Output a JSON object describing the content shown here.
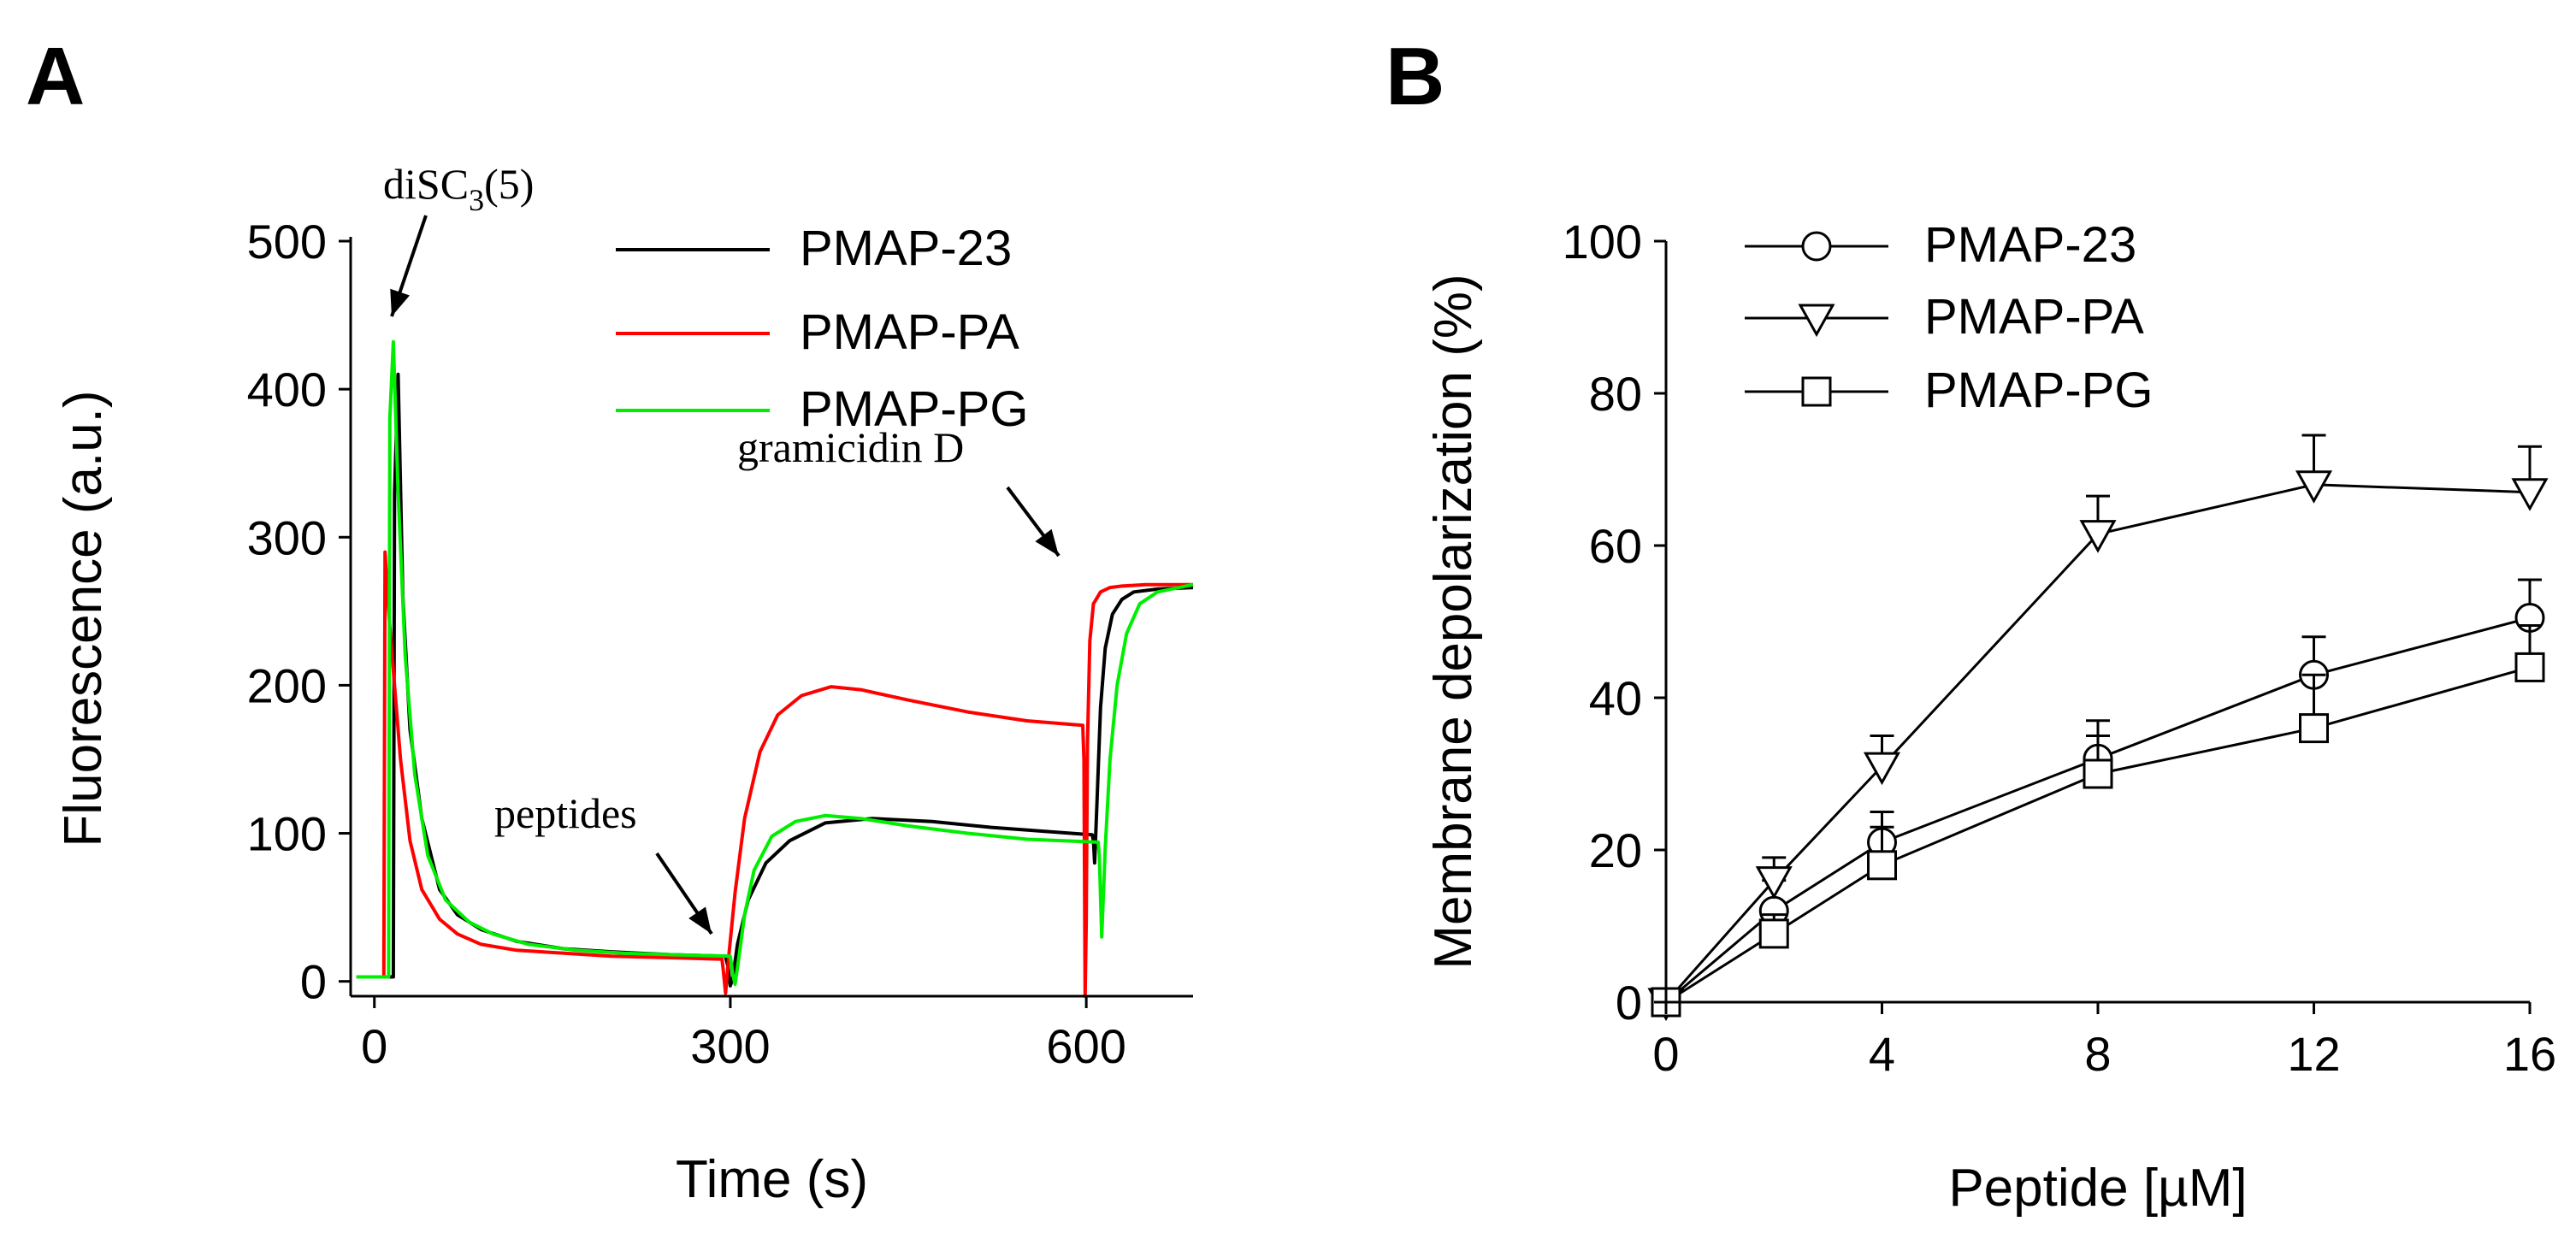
{
  "figure": {
    "panels": [
      {
        "label": "A"
      },
      {
        "label": "B"
      }
    ]
  },
  "chart_data": [
    {
      "panel": "A",
      "type": "line",
      "title": "",
      "xlabel": "Time (s)",
      "ylabel": "Fluorescence (a.u.)",
      "xlim": [
        -20,
        690
      ],
      "ylim": [
        -10,
        500
      ],
      "xticks": [
        0,
        300,
        600
      ],
      "yticks": [
        0,
        100,
        200,
        300,
        400,
        500
      ],
      "legend_position": "top-right",
      "annotations": [
        {
          "text": "diSC",
          "sub": "3",
          "suffix": "(5)",
          "x": 12,
          "y": 440
        },
        {
          "text": "peptides",
          "x": 295,
          "y": 20
        },
        {
          "text": "gramicidin D",
          "x": 598,
          "y": 175
        }
      ],
      "series": [
        {
          "name": "PMAP-23",
          "color": "#000000",
          "x": [
            -15,
            16,
            17,
            20,
            24,
            30,
            40,
            55,
            70,
            90,
            120,
            160,
            200,
            250,
            296,
            298,
            300,
            302,
            306,
            315,
            330,
            350,
            380,
            420,
            470,
            520,
            570,
            605,
            606,
            607,
            609,
            612,
            616,
            622,
            630,
            640,
            660,
            690
          ],
          "y": [
            3,
            3,
            330,
            410,
            260,
            170,
            110,
            62,
            45,
            35,
            27,
            22,
            20,
            18,
            17,
            10,
            -3,
            2,
            25,
            55,
            80,
            95,
            107,
            110,
            108,
            104,
            101,
            99,
            95,
            80,
            120,
            185,
            225,
            248,
            258,
            263,
            265,
            266
          ]
        },
        {
          "name": "PMAP-PA",
          "color": "#ff0000",
          "x": [
            -15,
            8,
            9,
            12,
            16,
            22,
            30,
            40,
            55,
            70,
            90,
            120,
            160,
            200,
            250,
            293,
            294,
            296,
            299,
            304,
            312,
            325,
            340,
            360,
            385,
            410,
            450,
            500,
            550,
            597,
            598,
            599,
            600,
            601,
            603,
            606,
            612,
            620,
            630,
            650,
            690
          ],
          "y": [
            3,
            3,
            290,
            250,
            210,
            150,
            95,
            62,
            42,
            32,
            25,
            21,
            19,
            17,
            16,
            15,
            8,
            -8,
            20,
            60,
            110,
            155,
            180,
            193,
            199,
            197,
            190,
            182,
            176,
            173,
            150,
            -10,
            40,
            160,
            230,
            255,
            263,
            266,
            267,
            268,
            268
          ]
        },
        {
          "name": "PMAP-PG",
          "color": "#00ee00",
          "x": [
            -15,
            12,
            13,
            16,
            20,
            26,
            34,
            45,
            60,
            80,
            100,
            130,
            170,
            210,
            250,
            300,
            302,
            304,
            307,
            312,
            320,
            335,
            355,
            380,
            410,
            450,
            500,
            550,
            610,
            611,
            613,
            616,
            620,
            626,
            634,
            645,
            660,
            690
          ],
          "y": [
            3,
            3,
            380,
            432,
            330,
            220,
            140,
            85,
            55,
            40,
            32,
            25,
            21,
            19,
            18,
            17,
            5,
            -2,
            15,
            45,
            75,
            98,
            108,
            112,
            110,
            105,
            100,
            96,
            94,
            85,
            30,
            90,
            150,
            200,
            235,
            255,
            263,
            268
          ]
        }
      ]
    },
    {
      "panel": "B",
      "type": "line",
      "title": "",
      "xlabel": "Peptide [µM]",
      "ylabel": "Membrane depolarization (%)",
      "xlim": [
        0,
        16
      ],
      "ylim": [
        0,
        100
      ],
      "xticks": [
        0,
        4,
        8,
        12,
        16
      ],
      "yticks": [
        0,
        20,
        40,
        60,
        80,
        100
      ],
      "legend_position": "top-left",
      "x": [
        0,
        2,
        4,
        8,
        12,
        16
      ],
      "series": [
        {
          "name": "PMAP-23",
          "marker": "circle",
          "values": [
            0,
            12,
            21,
            32,
            43,
            50.5
          ],
          "errors": [
            0,
            4,
            4,
            5,
            5,
            5
          ]
        },
        {
          "name": "PMAP-PA",
          "marker": "triangle-down",
          "values": [
            0,
            16,
            31,
            61.5,
            68,
            67
          ],
          "errors": [
            0,
            3,
            4,
            5,
            6.5,
            6
          ]
        },
        {
          "name": "PMAP-PG",
          "marker": "square",
          "values": [
            0,
            9,
            18,
            30,
            36,
            44
          ],
          "errors": [
            0,
            2.5,
            5,
            5,
            7,
            5.5
          ]
        }
      ]
    }
  ]
}
